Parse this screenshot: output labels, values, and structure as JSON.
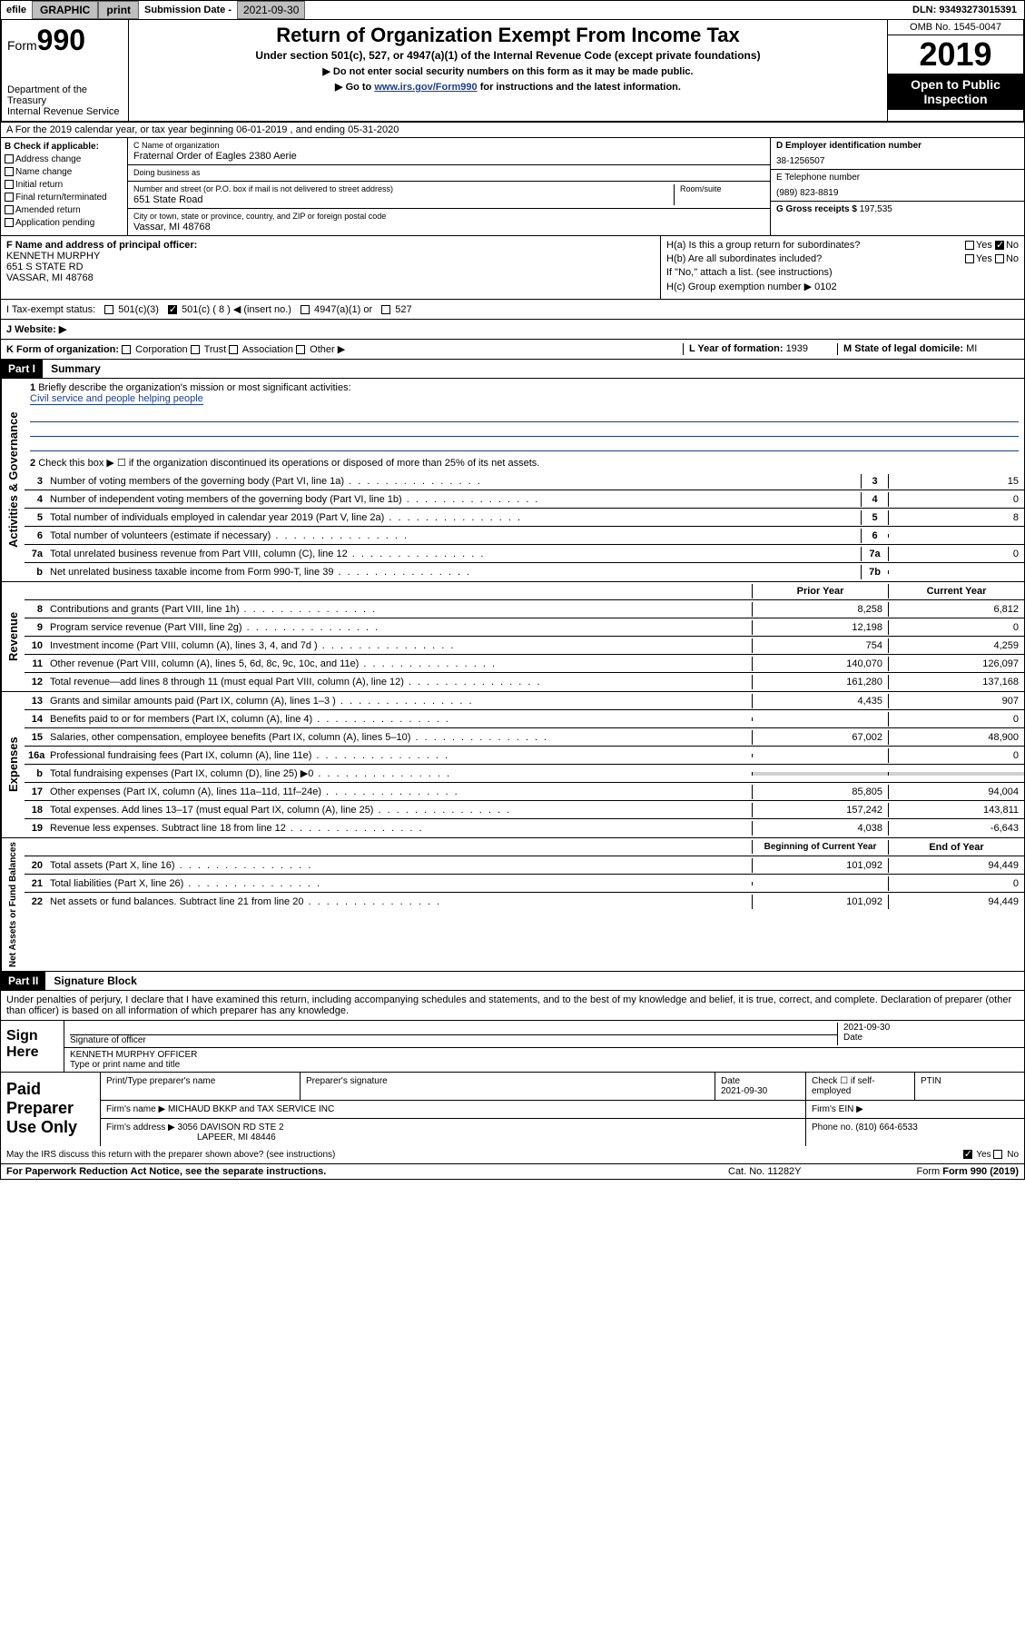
{
  "topbar": {
    "efile": "efile",
    "graphic": "GRAPHIC",
    "print": "print",
    "submission_label": "Submission Date - ",
    "submission_date": "2021-09-30",
    "dln": "DLN: 93493273015391"
  },
  "header": {
    "form_label": "Form",
    "form_number": "990",
    "dept": "Department of the Treasury",
    "irs": "Internal Revenue Service",
    "title": "Return of Organization Exempt From Income Tax",
    "sub": "Under section 501(c), 527, or 4947(a)(1) of the Internal Revenue Code (except private foundations)",
    "instr1": "▶ Do not enter social security numbers on this form as it may be made public.",
    "instr2_pre": "▶ Go to ",
    "instr2_link": "www.irs.gov/Form990",
    "instr2_post": " for instructions and the latest information.",
    "omb": "OMB No. 1545-0047",
    "year": "2019",
    "open_public": "Open to Public Inspection"
  },
  "row_a": "A For the 2019 calendar year, or tax year beginning 06-01-2019   , and ending 05-31-2020",
  "col_b": {
    "title": "B Check if applicable:",
    "items": [
      "Address change",
      "Name change",
      "Initial return",
      "Final return/terminated",
      "Amended return",
      "Application pending"
    ]
  },
  "col_c": {
    "name_label": "C Name of organization",
    "name": "Fraternal Order of Eagles 2380 Aerie",
    "dba_label": "Doing business as",
    "dba": "",
    "street_label": "Number and street (or P.O. box if mail is not delivered to street address)",
    "room_label": "Room/suite",
    "street": "651 State Road",
    "city_label": "City or town, state or province, country, and ZIP or foreign postal code",
    "city": "Vassar, MI  48768"
  },
  "col_d": {
    "ein_label": "D Employer identification number",
    "ein": "38-1256507",
    "phone_label": "E Telephone number",
    "phone": "(989) 823-8819",
    "receipts_label": "G Gross receipts $ ",
    "receipts": "197,535"
  },
  "col_f": {
    "label": "F  Name and address of principal officer:",
    "name": "KENNETH MURPHY",
    "street": "651 S STATE RD",
    "city": "VASSAR, MI  48768"
  },
  "col_h": {
    "ha_label": "H(a)  Is this a group return for subordinates?",
    "ha_no": "No",
    "hb_label": "H(b)  Are all subordinates included?",
    "hb_note": "If \"No,\" attach a list. (see instructions)",
    "hc_label": "H(c)  Group exemption number ▶  ",
    "hc_val": "0102"
  },
  "row_i": {
    "label": "I   Tax-exempt status:",
    "opt1": "501(c)(3)",
    "opt2": "501(c) ( 8 ) ◀ (insert no.)",
    "opt3": "4947(a)(1) or",
    "opt4": "527"
  },
  "row_j": "J   Website: ▶",
  "row_k": {
    "k_label": "K Form of organization:",
    "k_opts": [
      "Corporation",
      "Trust",
      "Association",
      "Other ▶"
    ],
    "l_label": "L Year of formation: ",
    "l_val": "1939",
    "m_label": "M State of legal domicile: ",
    "m_val": "MI"
  },
  "part1": {
    "header": "Part I",
    "title": "Summary"
  },
  "gov": {
    "label": "Activities & Governance",
    "line1_text": "Briefly describe the organization's mission or most significant activities:",
    "line1_val": "Civil service and people helping people",
    "line2_text": "Check this box ▶ ☐  if the organization discontinued its operations or disposed of more than 25% of its net assets.",
    "lines": [
      {
        "n": "3",
        "t": "Number of voting members of the governing body (Part VI, line 1a)",
        "b": "3",
        "v": "15"
      },
      {
        "n": "4",
        "t": "Number of independent voting members of the governing body (Part VI, line 1b)",
        "b": "4",
        "v": "0"
      },
      {
        "n": "5",
        "t": "Total number of individuals employed in calendar year 2019 (Part V, line 2a)",
        "b": "5",
        "v": "8"
      },
      {
        "n": "6",
        "t": "Total number of volunteers (estimate if necessary)",
        "b": "6",
        "v": ""
      },
      {
        "n": "7a",
        "t": "Total unrelated business revenue from Part VIII, column (C), line 12",
        "b": "7a",
        "v": "0"
      },
      {
        "n": "b",
        "t": "Net unrelated business taxable income from Form 990-T, line 39",
        "b": "7b",
        "v": ""
      }
    ]
  },
  "rev": {
    "label": "Revenue",
    "hdr_prior": "Prior Year",
    "hdr_curr": "Current Year",
    "lines": [
      {
        "n": "8",
        "t": "Contributions and grants (Part VIII, line 1h)",
        "p": "8,258",
        "c": "6,812"
      },
      {
        "n": "9",
        "t": "Program service revenue (Part VIII, line 2g)",
        "p": "12,198",
        "c": "0"
      },
      {
        "n": "10",
        "t": "Investment income (Part VIII, column (A), lines 3, 4, and 7d )",
        "p": "754",
        "c": "4,259"
      },
      {
        "n": "11",
        "t": "Other revenue (Part VIII, column (A), lines 5, 6d, 8c, 9c, 10c, and 11e)",
        "p": "140,070",
        "c": "126,097"
      },
      {
        "n": "12",
        "t": "Total revenue—add lines 8 through 11 (must equal Part VIII, column (A), line 12)",
        "p": "161,280",
        "c": "137,168"
      }
    ]
  },
  "exp": {
    "label": "Expenses",
    "lines": [
      {
        "n": "13",
        "t": "Grants and similar amounts paid (Part IX, column (A), lines 1–3 )",
        "p": "4,435",
        "c": "907"
      },
      {
        "n": "14",
        "t": "Benefits paid to or for members (Part IX, column (A), line 4)",
        "p": "",
        "c": "0"
      },
      {
        "n": "15",
        "t": "Salaries, other compensation, employee benefits (Part IX, column (A), lines 5–10)",
        "p": "67,002",
        "c": "48,900"
      },
      {
        "n": "16a",
        "t": "Professional fundraising fees (Part IX, column (A), line 11e)",
        "p": "",
        "c": "0"
      },
      {
        "n": "b",
        "t": "Total fundraising expenses (Part IX, column (D), line 25) ▶0",
        "p": "shade",
        "c": "shade"
      },
      {
        "n": "17",
        "t": "Other expenses (Part IX, column (A), lines 11a–11d, 11f–24e)",
        "p": "85,805",
        "c": "94,004"
      },
      {
        "n": "18",
        "t": "Total expenses. Add lines 13–17 (must equal Part IX, column (A), line 25)",
        "p": "157,242",
        "c": "143,811"
      },
      {
        "n": "19",
        "t": "Revenue less expenses. Subtract line 18 from line 12",
        "p": "4,038",
        "c": "-6,643"
      }
    ]
  },
  "net": {
    "label": "Net Assets or Fund Balances",
    "hdr_beg": "Beginning of Current Year",
    "hdr_end": "End of Year",
    "lines": [
      {
        "n": "20",
        "t": "Total assets (Part X, line 16)",
        "p": "101,092",
        "c": "94,449"
      },
      {
        "n": "21",
        "t": "Total liabilities (Part X, line 26)",
        "p": "",
        "c": "0"
      },
      {
        "n": "22",
        "t": "Net assets or fund balances. Subtract line 21 from line 20",
        "p": "101,092",
        "c": "94,449"
      }
    ]
  },
  "part2": {
    "header": "Part II",
    "title": "Signature Block"
  },
  "sig": {
    "intro": "Under penalties of perjury, I declare that I have examined this return, including accompanying schedules and statements, and to the best of my knowledge and belief, it is true, correct, and complete. Declaration of preparer (other than officer) is based on all information of which preparer has any knowledge.",
    "sign_here": "Sign Here",
    "sig_officer": "Signature of officer",
    "date_label": "Date",
    "date_val": "2021-09-30",
    "name": "KENNETH MURPHY OFFICER",
    "name_label": "Type or print name and title"
  },
  "paid": {
    "label": "Paid Preparer Use Only",
    "col1": "Print/Type preparer's name",
    "col2": "Preparer's signature",
    "col3_label": "Date",
    "col3_val": "2021-09-30",
    "col4": "Check ☐ if self-employed",
    "col5": "PTIN",
    "firm_name_label": "Firm's name    ▶ ",
    "firm_name": "MICHAUD BKKP and TAX SERVICE INC",
    "firm_ein_label": "Firm's EIN ▶",
    "firm_addr_label": "Firm's address ▶ ",
    "firm_addr1": "3056 DAVISON RD STE 2",
    "firm_addr2": "LAPEER, MI  48446",
    "phone_label": "Phone no. ",
    "phone": "(810) 664-6533"
  },
  "discuss": "May the IRS discuss this return with the preparer shown above? (see instructions)",
  "footer": {
    "pra": "For Paperwork Reduction Act Notice, see the separate instructions.",
    "cat": "Cat. No. 11282Y",
    "form": "Form 990 (2019)"
  }
}
